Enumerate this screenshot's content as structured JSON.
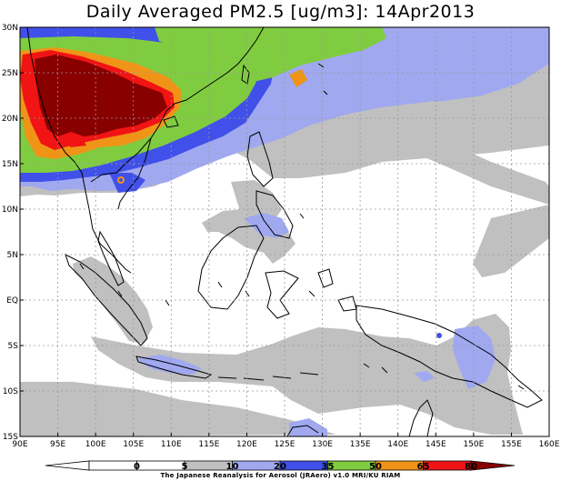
{
  "title": "Daily Averaged PM2.5 [ug/m3]: 14Apr2013",
  "caption": "The Japanese Reanalysis for Aerosol (JRAero) v1.0 MRI/KU RIAM",
  "lon_labels": [
    "90E",
    "95E",
    "100E",
    "105E",
    "110E",
    "115E",
    "120E",
    "125E",
    "130E",
    "135E",
    "140E",
    "145E",
    "150E",
    "155E",
    "160E"
  ],
  "lat_labels": [
    "30N",
    "25N",
    "20N",
    "15N",
    "10N",
    "5N",
    "EQ",
    "5S",
    "10S",
    "15S"
  ],
  "legend": {
    "labels": [
      "0",
      "5",
      "10",
      "20",
      "35",
      "50",
      "65",
      "80"
    ],
    "bins": [
      {
        "range": "<0",
        "color": "#ffffff"
      },
      {
        "range": "0-5",
        "color": "#ffffff"
      },
      {
        "range": "5-10",
        "color": "#ffffff"
      },
      {
        "range": "10-20",
        "color": "#c0c0c0"
      },
      {
        "range": "20-35",
        "color": "#a0a8f0"
      },
      {
        "range": "35-50",
        "color": "#4050e8"
      },
      {
        "range": "50-65",
        "color": "#80cc40"
      },
      {
        "range": "65-80",
        "color": "#f09418"
      },
      {
        "range": "80-95",
        "color": "#f01414"
      },
      {
        "range": ">95",
        "color": "#880000"
      }
    ]
  },
  "colors": {
    "gray": "#c0c0c0",
    "light_blue": "#a0a8f0",
    "blue": "#4050e8",
    "green": "#80cc40",
    "orange": "#f09418",
    "red": "#f01414",
    "dark_red": "#880000"
  }
}
